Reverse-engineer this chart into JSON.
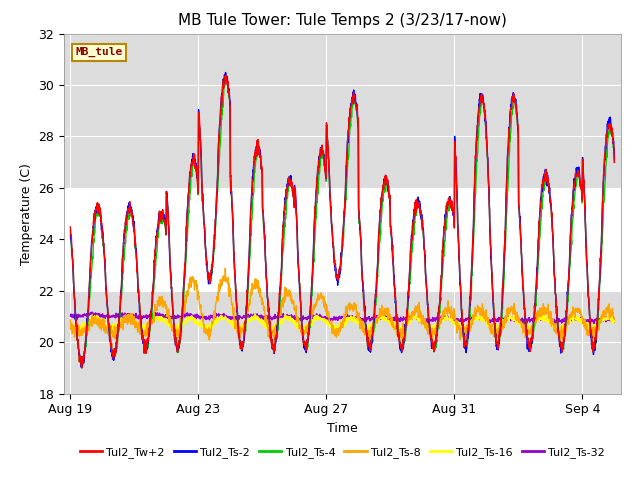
{
  "title": "MB Tule Tower: Tule Temps 2 (3/23/17-now)",
  "xlabel": "Time",
  "ylabel": "Temperature (C)",
  "ylim": [
    18,
    32
  ],
  "yticks": [
    18,
    20,
    22,
    24,
    26,
    28,
    30,
    32
  ],
  "shaded_band_lo": 22,
  "shaded_band_hi": 26,
  "x_tick_labels": [
    "Aug 19",
    "Aug 23",
    "Aug 27",
    "Aug 31",
    "Sep 4"
  ],
  "x_tick_positions": [
    0,
    4,
    8,
    12,
    16
  ],
  "annotation_text": "MB_tule",
  "annotation_color": "#8B0000",
  "annotation_bg": "#FFFFD0",
  "annotation_border": "#B8860B",
  "series_colors": {
    "Tul2_Tw+2": "#FF0000",
    "Tul2_Ts-2": "#0000FF",
    "Tul2_Ts-4": "#00CC00",
    "Tul2_Ts-8": "#FFA500",
    "Tul2_Ts-16": "#FFFF00",
    "Tul2_Ts-32": "#9900CC"
  },
  "background_color": "#FFFFFF",
  "plot_bg_color": "#DCDCDC",
  "grid_color": "#FFFFFF",
  "title_fontsize": 11,
  "axis_label_fontsize": 9,
  "tick_fontsize": 9
}
